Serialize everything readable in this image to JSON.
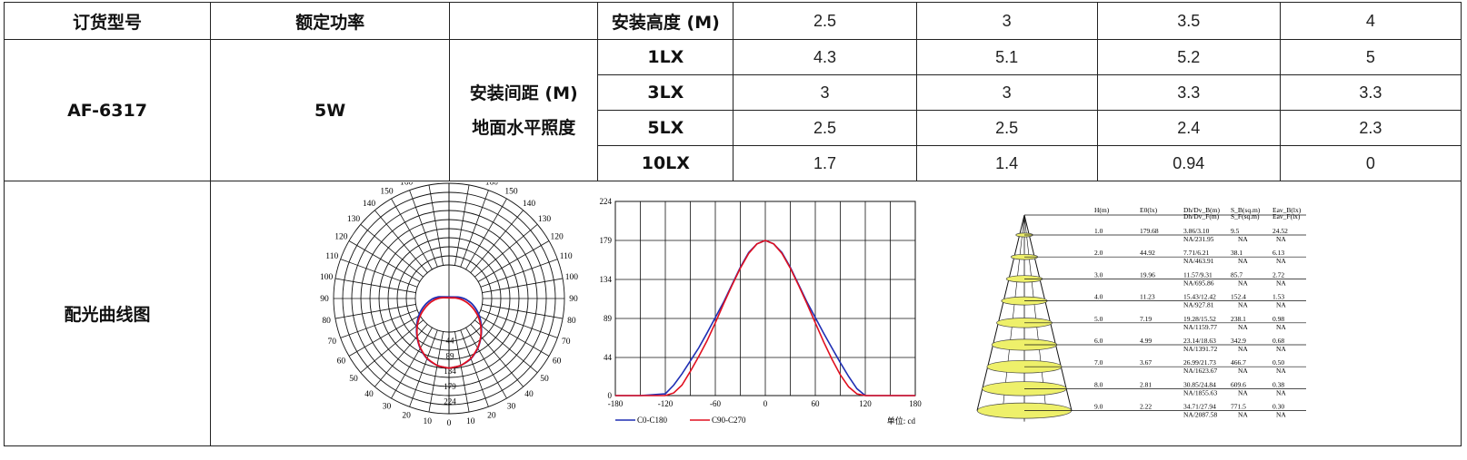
{
  "table": {
    "headers": {
      "model": "订货型号",
      "power": "额定功率",
      "mount_height": "安装高度 (M)",
      "heights": [
        "2.5",
        "3",
        "3.5",
        "4"
      ]
    },
    "model": "AF-6317",
    "power": "5W",
    "spacing_label": "安装间距 (M)",
    "illuminance_label": "地面水平照度",
    "rows": [
      {
        "lux": "1LX",
        "values": [
          "4.3",
          "5.1",
          "5.2",
          "5"
        ]
      },
      {
        "lux": "3LX",
        "values": [
          "3",
          "3",
          "3.3",
          "3.3"
        ]
      },
      {
        "lux": "5LX",
        "values": [
          "2.5",
          "2.5",
          "2.4",
          "2.3"
        ]
      },
      {
        "lux": "10LX",
        "values": [
          "1.7",
          "1.4",
          "0.94",
          "0"
        ]
      }
    ],
    "curve_label": "配光曲线图"
  },
  "chart_data": [
    {
      "type": "polar",
      "angle_labels_left": [
        "180",
        "170",
        "160",
        "150",
        "140",
        "130",
        "120",
        "110",
        "100",
        "90",
        "80",
        "70",
        "60",
        "50",
        "40",
        "30",
        "20",
        "10",
        "0"
      ],
      "angle_labels_right": [
        "180",
        "170",
        "160",
        "150",
        "140",
        "130",
        "120",
        "110",
        "100",
        "90",
        "80",
        "70",
        "60",
        "50",
        "40",
        "30",
        "20",
        "10"
      ],
      "radial_labels": [
        "44",
        "89",
        "134",
        "179",
        "224"
      ],
      "series": [
        {
          "name": "C0-C180",
          "color": "#1f2fb4"
        },
        {
          "name": "C90-C270",
          "color": "#e01020"
        }
      ],
      "peak_cd": 179,
      "rmax": 224
    },
    {
      "type": "line",
      "x": [
        -180,
        -150,
        -120,
        -110,
        -100,
        -90,
        -80,
        -70,
        -60,
        -50,
        -40,
        -30,
        -20,
        -10,
        0,
        10,
        20,
        30,
        40,
        50,
        60,
        70,
        80,
        90,
        100,
        110,
        120,
        150,
        180
      ],
      "series": [
        {
          "name": "C0-C180",
          "color": "#1f2fb4",
          "values": [
            0,
            0,
            2,
            12,
            25,
            40,
            55,
            72,
            90,
            108,
            128,
            148,
            165,
            175,
            179,
            175,
            165,
            148,
            128,
            108,
            90,
            72,
            55,
            38,
            22,
            8,
            0,
            0,
            0
          ]
        },
        {
          "name": "C90-C270",
          "color": "#e01020",
          "values": [
            0,
            0,
            0,
            3,
            12,
            28,
            45,
            63,
            84,
            106,
            127,
            147,
            164,
            175,
            179,
            175,
            164,
            147,
            127,
            106,
            84,
            62,
            42,
            24,
            10,
            2,
            0,
            0,
            0
          ]
        }
      ],
      "xticks": [
        "-180",
        "-120",
        "-60",
        "0",
        "60",
        "120",
        "180"
      ],
      "yticks": [
        "0",
        "44",
        "89",
        "134",
        "179",
        "224"
      ],
      "xlim": [
        -180,
        180
      ],
      "ylim": [
        0,
        224
      ],
      "unit_label": "单位: cd"
    },
    {
      "type": "table",
      "headers": [
        "H(m)",
        "E0(lx)",
        "Dh/Dv_B(m)",
        "S_B(sq.m)",
        "Eav_B(lx)"
      ],
      "headers2": [
        "",
        "",
        "Dh/Dv_F(m)",
        "S_F(sq.m)",
        "Eav_F(lx)"
      ],
      "rows": [
        [
          "1.0",
          "179.68",
          "3.86/3.10",
          "9.5",
          "24.52",
          "NA/231.95",
          "NA",
          "NA"
        ],
        [
          "2.0",
          "44.92",
          "7.71/6.21",
          "38.1",
          "6.13",
          "NA/463.91",
          "NA",
          "NA"
        ],
        [
          "3.0",
          "19.96",
          "11.57/9.31",
          "85.7",
          "2.72",
          "NA/695.86",
          "NA",
          "NA"
        ],
        [
          "4.0",
          "11.23",
          "15.43/12.42",
          "152.4",
          "1.53",
          "NA/927.81",
          "NA",
          "NA"
        ],
        [
          "5.0",
          "7.19",
          "19.28/15.52",
          "238.1",
          "0.98",
          "NA/1159.77",
          "NA",
          "NA"
        ],
        [
          "6.0",
          "4.99",
          "23.14/18.63",
          "342.9",
          "0.68",
          "NA/1391.72",
          "NA",
          "NA"
        ],
        [
          "7.0",
          "3.67",
          "26.99/21.73",
          "466.7",
          "0.50",
          "NA/1623.67",
          "NA",
          "NA"
        ],
        [
          "8.0",
          "2.81",
          "30.85/24.84",
          "609.6",
          "0.38",
          "NA/1855.63",
          "NA",
          "NA"
        ],
        [
          "9.0",
          "2.22",
          "34.71/27.94",
          "771.5",
          "0.30",
          "NA/2087.58",
          "NA",
          "NA"
        ]
      ]
    }
  ]
}
